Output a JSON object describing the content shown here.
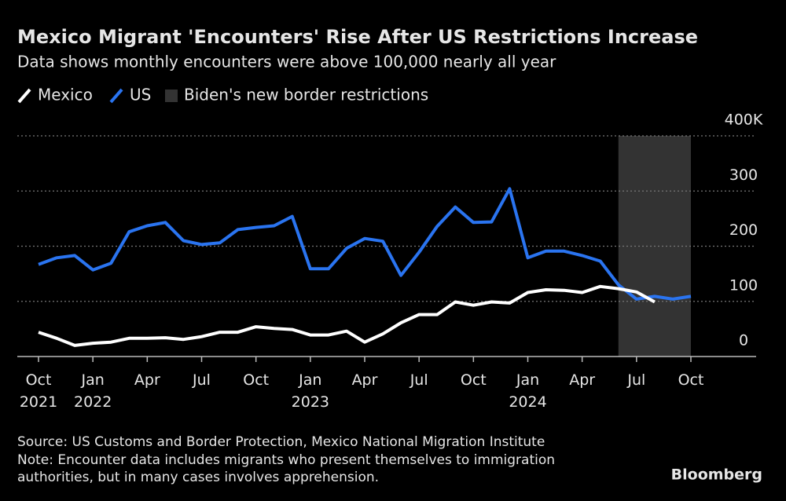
{
  "chart_data": {
    "type": "line",
    "title": "Mexico Migrant 'Encounters' Rise After US Restrictions Increase",
    "subtitle": "Data shows monthly encounters were above 100,000 nearly all year",
    "categories": [
      "Oct 2021",
      null,
      null,
      "Jan 2022",
      null,
      null,
      "Apr",
      null,
      null,
      "Jul",
      null,
      null,
      "Oct",
      null,
      null,
      "Jan 2023",
      null,
      null,
      "Apr",
      null,
      null,
      "Jul",
      null,
      null,
      "Oct",
      null,
      null,
      "Jan 2024",
      null,
      null,
      "Apr",
      null,
      null,
      "Jul",
      null,
      null,
      "Oct"
    ],
    "series": [
      {
        "name": "Mexico",
        "color": "#ffffff",
        "values": [
          44,
          33,
          20,
          24,
          26,
          33,
          33,
          34,
          31,
          36,
          44,
          44,
          54,
          51,
          49,
          39,
          39,
          46,
          26,
          41,
          61,
          76,
          76,
          99,
          93,
          99,
          97,
          116,
          121,
          120,
          116,
          127,
          123,
          117,
          99,
          null,
          null
        ]
      },
      {
        "name": "US",
        "color": "#2a74f0",
        "values": [
          167,
          179,
          183,
          157,
          169,
          226,
          237,
          243,
          210,
          203,
          206,
          230,
          234,
          237,
          254,
          159,
          159,
          196,
          214,
          209,
          147,
          189,
          236,
          271,
          243,
          244,
          304,
          179,
          191,
          191,
          183,
          173,
          130,
          104,
          109,
          104,
          109
        ]
      }
    ],
    "highlight": {
      "name": "Biden's new border restrictions",
      "color": "#333333",
      "span": [
        32,
        36
      ]
    },
    "ylim": [
      0,
      400
    ],
    "yticks": [
      0,
      100,
      200,
      300,
      {
        "value": 400,
        "label": "400K"
      }
    ],
    "grid": true,
    "source": "Source: US Customs and Border Protection, Mexico National Migration Institute",
    "note": [
      "Note: Encounter data includes migrants who present themselves to immigration",
      "authorities, but in many cases involves apprehension."
    ],
    "brand": "Bloomberg"
  }
}
